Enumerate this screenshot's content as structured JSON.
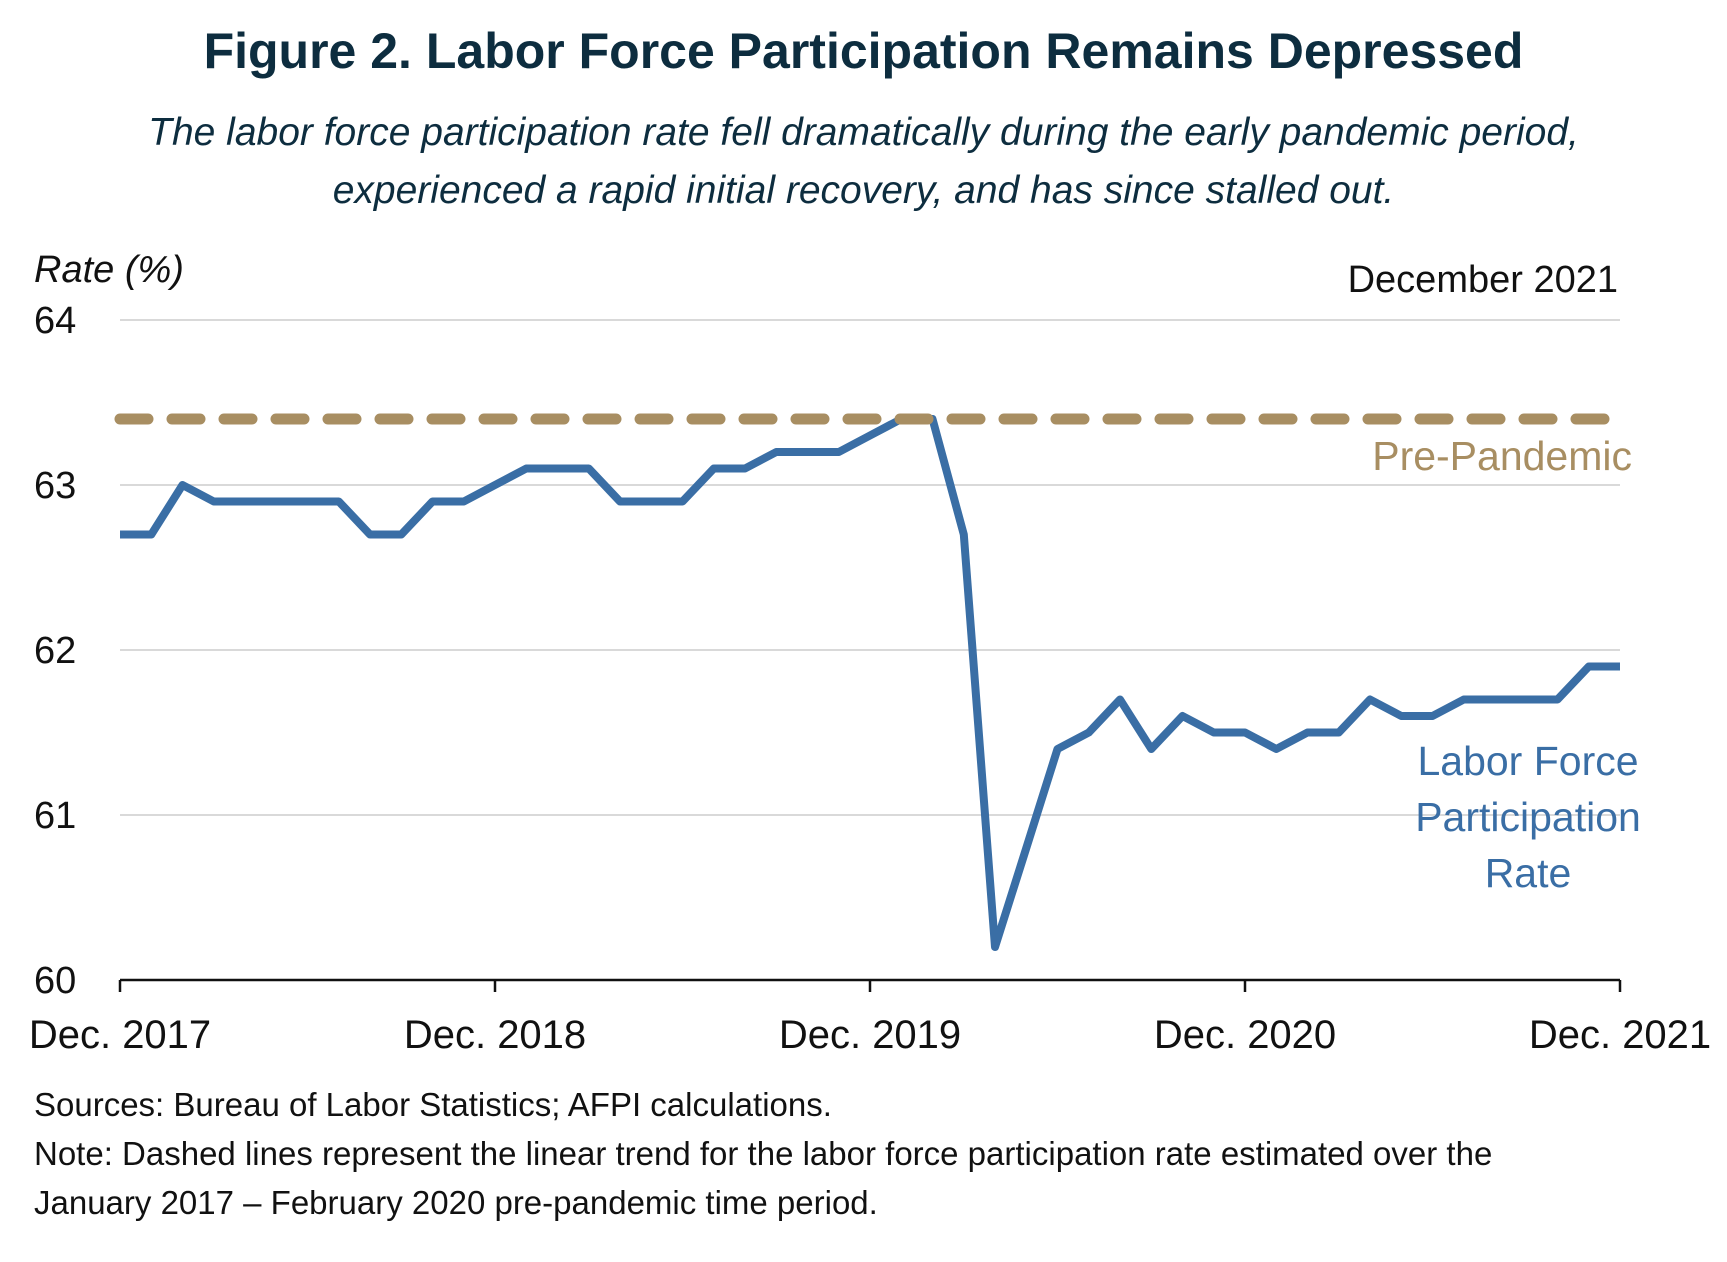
{
  "title": "Figure 2. Labor Force Participation Remains Depressed",
  "subtitle_lines": [
    "The labor force participation rate fell dramatically during the early pandemic period,",
    "experienced a rapid initial recovery, and has since stalled out."
  ],
  "sources": "Sources: Bureau of Labor Statistics; AFPI calculations.",
  "note_lines": [
    "Note: Dashed lines represent the linear trend for the labor force participation rate estimated over the",
    "January 2017 – February 2020 pre-pandemic time period."
  ],
  "colors": {
    "lfpr": "#3a6ea5",
    "trend": "#a88e62",
    "text": "#0d2d3f",
    "grid": "#d9d9d9"
  },
  "chart_data": {
    "type": "line",
    "ylabel": "Rate (%)",
    "date_label": "December 2021",
    "ylim": [
      60,
      64
    ],
    "yticks": [
      60,
      61,
      62,
      63,
      64
    ],
    "xticks": [
      "Dec. 2017",
      "Dec. 2018",
      "Dec. 2019",
      "Dec. 2020",
      "Dec. 2021"
    ],
    "x_range": [
      "Dec. 2017",
      "Dec. 2021"
    ],
    "grid": true,
    "series": [
      {
        "name": "Labor Force Participation Rate",
        "label_lines": [
          "Labor Force",
          "Participation",
          "Rate"
        ],
        "style": "solid",
        "x": [
          "2017-12",
          "2018-01",
          "2018-02",
          "2018-03",
          "2018-04",
          "2018-05",
          "2018-06",
          "2018-07",
          "2018-08",
          "2018-09",
          "2018-10",
          "2018-11",
          "2018-12",
          "2019-01",
          "2019-02",
          "2019-03",
          "2019-04",
          "2019-05",
          "2019-06",
          "2019-07",
          "2019-08",
          "2019-09",
          "2019-10",
          "2019-11",
          "2019-12",
          "2020-01",
          "2020-02",
          "2020-03",
          "2020-04",
          "2020-05",
          "2020-06",
          "2020-07",
          "2020-08",
          "2020-09",
          "2020-10",
          "2020-11",
          "2020-12",
          "2021-01",
          "2021-02",
          "2021-03",
          "2021-04",
          "2021-05",
          "2021-06",
          "2021-07",
          "2021-08",
          "2021-09",
          "2021-10",
          "2021-11",
          "2021-12"
        ],
        "values": [
          62.7,
          62.7,
          63.0,
          62.9,
          62.9,
          62.9,
          62.9,
          62.9,
          62.7,
          62.7,
          62.9,
          62.9,
          63.0,
          63.1,
          63.1,
          63.1,
          62.9,
          62.9,
          62.9,
          63.1,
          63.1,
          63.2,
          63.2,
          63.2,
          63.3,
          63.4,
          63.4,
          62.7,
          60.2,
          60.8,
          61.4,
          61.5,
          61.7,
          61.4,
          61.6,
          61.5,
          61.5,
          61.4,
          61.5,
          61.5,
          61.7,
          61.6,
          61.6,
          61.7,
          61.7,
          61.7,
          61.7,
          61.9,
          61.9
        ]
      },
      {
        "name": "Pre-Pandemic",
        "label_lines": [
          "Pre-Pandemic"
        ],
        "style": "dashed",
        "x": [
          "2017-12",
          "2021-12"
        ],
        "values": [
          63.4,
          63.4
        ]
      }
    ]
  }
}
